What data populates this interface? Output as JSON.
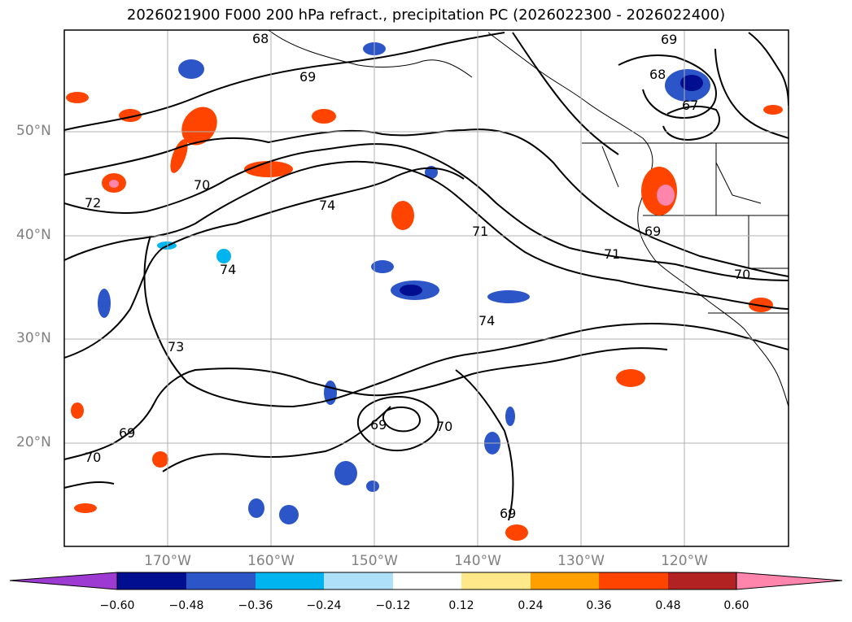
{
  "title": "2026021900 F000 200 hPa refract., precipitation PC (2026022300 - 2026022400)",
  "lat_labels": [
    "50°N",
    "40°N",
    "30°N",
    "20°N"
  ],
  "lon_labels": [
    "170°W",
    "160°W",
    "150°W",
    "140°W",
    "130°W",
    "120°W"
  ],
  "contour_labels": [
    "68",
    "69",
    "69",
    "68",
    "67",
    "70",
    "72",
    "74",
    "74",
    "71",
    "70",
    "69",
    "74",
    "73",
    "69",
    "70",
    "69",
    "70",
    "71",
    "69"
  ],
  "colorbar": {
    "colors": [
      "#9c3ad1",
      "#000e8f",
      "#2c55c8",
      "#00b5ef",
      "#aee0fa",
      "#ffffff",
      "#ffe88a",
      "#ffa000",
      "#ff4400",
      "#b22222",
      "#ff85ad"
    ],
    "tick_labels": [
      "−0.60",
      "−0.48",
      "−0.36",
      "−0.24",
      "−0.12",
      "0.12",
      "0.24",
      "0.36",
      "0.48",
      "0.60"
    ]
  },
  "chart_data": {
    "type": "heatmap",
    "title": "2026021900 F000 200 hPa refract., precipitation PC (2026022300 - 2026022400)",
    "lat_ticks": [
      50,
      40,
      30,
      20
    ],
    "lon_ticks": [
      -170,
      -160,
      -150,
      -140,
      -130,
      -120
    ],
    "colorbar_levels": [
      -0.6,
      -0.48,
      -0.36,
      -0.24,
      -0.12,
      0.12,
      0.24,
      0.36,
      0.48,
      0.6
    ],
    "contour_levels": [
      67,
      68,
      69,
      70,
      71,
      72,
      73,
      74
    ]
  }
}
